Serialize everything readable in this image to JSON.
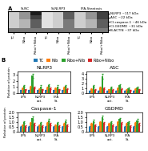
{
  "chart_data": [
    {
      "type": "heatmap",
      "title": "A",
      "x_groups": [
        {
          "name": "Si-NC",
          "categories": [
            "TC",
            "Nibo",
            "Ribo/+Nibo"
          ]
        },
        {
          "name": "Si-NLRP3",
          "categories": [
            "TC",
            "Nibo",
            "Ribo/+Nibo"
          ]
        },
        {
          "name": "FFA-Steatosis",
          "categories": [
            "TC",
            "Nibo",
            "Ribo/+Nibo"
          ]
        }
      ],
      "y_categories": [
        "NLRP3 ~117 kDa",
        "ASC ~22 kDa",
        "Cl-caspase-1 ~46 kDa",
        "Cl-GSDMD ~31 kDa",
        "B-ACTIN ~37 kDa"
      ],
      "cells": [
        [
          0.3,
          0.5,
          0.9,
          0.2,
          0.3,
          0.7,
          0.3,
          0.5,
          0.8
        ],
        [
          0.3,
          0.5,
          0.8,
          0.2,
          0.3,
          0.7,
          0.3,
          0.5,
          0.8
        ],
        [
          0.3,
          0.4,
          0.7,
          0.2,
          0.3,
          0.6,
          0.3,
          0.4,
          0.7
        ],
        [
          0.3,
          0.4,
          0.7,
          0.2,
          0.3,
          0.6,
          0.3,
          0.4,
          0.7
        ],
        [
          0.6,
          0.6,
          0.6,
          0.6,
          0.6,
          0.6,
          0.6,
          0.6,
          0.6
        ]
      ],
      "value_range": [
        0,
        1
      ]
    },
    {
      "type": "bar",
      "title": "NLRP3",
      "ylabel": "Relative of protein",
      "annotations": [
        "B"
      ],
      "legend": "upper center",
      "categories": [
        "LPS",
        null,
        "NLRP3\nact.",
        null,
        "FFA\nSt.",
        null
      ],
      "series": [
        {
          "name": "TC",
          "values": [
            0.5,
            0.5,
            0.5,
            0.5,
            0.5,
            0.5
          ],
          "errors": [
            0.06,
            0.06,
            0.06,
            0.06,
            0.06,
            0.06
          ]
        },
        {
          "name": "Nib",
          "values": [
            0.8,
            1.0,
            0.7,
            0.9,
            0.8,
            0.9
          ],
          "errors": [
            0.096,
            0.12,
            0.084,
            0.108,
            0.096,
            0.108
          ]
        },
        {
          "name": "Ribo+Nib",
          "values": [
            1.2,
            2.8,
            1.1,
            1.3,
            1.1,
            1.2
          ],
          "errors": [
            0.144,
            0.336,
            0.132,
            0.156,
            0.132,
            0.144
          ]
        },
        {
          "name": "Ribo+Nibo",
          "values": [
            0.6,
            0.9,
            0.6,
            0.8,
            0.6,
            0.7
          ],
          "errors": [
            0.072,
            0.108,
            0.072,
            0.096,
            0.072,
            0.084
          ]
        }
      ],
      "ylim": [
        0,
        3.5
      ],
      "yticks": [
        0,
        1,
        2,
        3
      ]
    },
    {
      "type": "bar",
      "title": "ASC",
      "categories": [
        "LPS",
        null,
        "NLRP3\nact.",
        null,
        "FFA\nSt.",
        null
      ],
      "series": [
        {
          "name": "TC",
          "values": [
            0.5,
            0.5,
            0.5,
            0.5,
            0.5,
            0.5
          ],
          "errors": [
            0.06,
            0.06,
            0.06,
            0.06,
            0.06,
            0.06
          ]
        },
        {
          "name": "Nib",
          "values": [
            0.9,
            1.2,
            0.8,
            1.0,
            0.7,
            0.9
          ],
          "errors": [
            0.108,
            0.144,
            0.096,
            0.12,
            0.084,
            0.108
          ]
        },
        {
          "name": "Ribo+Nib",
          "values": [
            1.5,
            3.5,
            1.2,
            1.6,
            1.0,
            1.2
          ],
          "errors": [
            0.18,
            0.42,
            0.144,
            0.192,
            0.12,
            0.144
          ]
        },
        {
          "name": "Ribo+Nibo",
          "values": [
            0.7,
            1.0,
            0.7,
            0.9,
            0.6,
            0.8
          ],
          "errors": [
            0.084,
            0.12,
            0.084,
            0.108,
            0.072,
            0.096
          ]
        }
      ],
      "ylim": [
        0,
        4.5
      ],
      "yticks": [
        0,
        1,
        2,
        3,
        4
      ]
    },
    {
      "type": "bar",
      "title": "Caspase-1",
      "ylabel": "Relative of protein",
      "categories": [
        "LPS",
        null,
        "NLRP3\nact.",
        null,
        "FFA\nSt.",
        null
      ],
      "series": [
        {
          "name": "TC",
          "values": [
            0.5,
            0.5,
            0.5,
            0.5,
            0.5,
            0.5
          ],
          "errors": [
            0.06,
            0.06,
            0.06,
            0.06,
            0.06,
            0.06
          ]
        },
        {
          "name": "Nib",
          "values": [
            0.7,
            0.9,
            0.7,
            0.9,
            0.7,
            0.8
          ],
          "errors": [
            0.084,
            0.108,
            0.084,
            0.108,
            0.084,
            0.096
          ]
        },
        {
          "name": "Ribo+Nib",
          "values": [
            1.0,
            1.4,
            0.9,
            1.2,
            0.9,
            1.1
          ],
          "errors": [
            0.12,
            0.168,
            0.108,
            0.144,
            0.108,
            0.132
          ]
        },
        {
          "name": "Ribo+Nibo",
          "values": [
            0.6,
            0.8,
            0.6,
            0.8,
            0.6,
            0.7
          ],
          "errors": [
            0.072,
            0.096,
            0.072,
            0.096,
            0.072,
            0.084
          ]
        }
      ],
      "ylim": [
        0,
        2.0
      ],
      "yticks": [
        0,
        0.5,
        {
          "value": 1,
          "label": "1.0"
        },
        1.5,
        {
          "value": 2,
          "label": "2.0"
        }
      ]
    },
    {
      "type": "bar",
      "title": "GSDMD",
      "categories": [
        "LPS",
        null,
        "NLRP3\nact.",
        null,
        "FFA\nSt.",
        null
      ],
      "series": [
        {
          "name": "TC",
          "values": [
            0.5,
            0.5,
            0.5,
            0.5,
            0.5,
            0.5
          ],
          "errors": [
            0.06,
            0.06,
            0.06,
            0.06,
            0.06,
            0.06
          ]
        },
        {
          "name": "Nib",
          "values": [
            0.8,
            1.0,
            0.8,
            1.0,
            0.8,
            0.9
          ],
          "errors": [
            0.096,
            0.12,
            0.096,
            0.12,
            0.096,
            0.108
          ]
        },
        {
          "name": "Ribo+Nib",
          "values": [
            1.1,
            1.5,
            1.0,
            1.3,
            1.0,
            1.2
          ],
          "errors": [
            0.132,
            0.18,
            0.12,
            0.156,
            0.12,
            0.144
          ]
        },
        {
          "name": "Ribo+Nibo",
          "values": [
            0.7,
            0.9,
            0.7,
            0.9,
            0.6,
            0.8
          ],
          "errors": [
            0.084,
            0.108,
            0.084,
            0.108,
            0.072,
            0.096
          ]
        }
      ],
      "ylim": [
        0,
        2.0
      ],
      "yticks": [
        0,
        0.5,
        {
          "value": 1,
          "label": "1.0"
        },
        1.5,
        {
          "value": 2,
          "label": "2.0"
        }
      ]
    }
  ]
}
